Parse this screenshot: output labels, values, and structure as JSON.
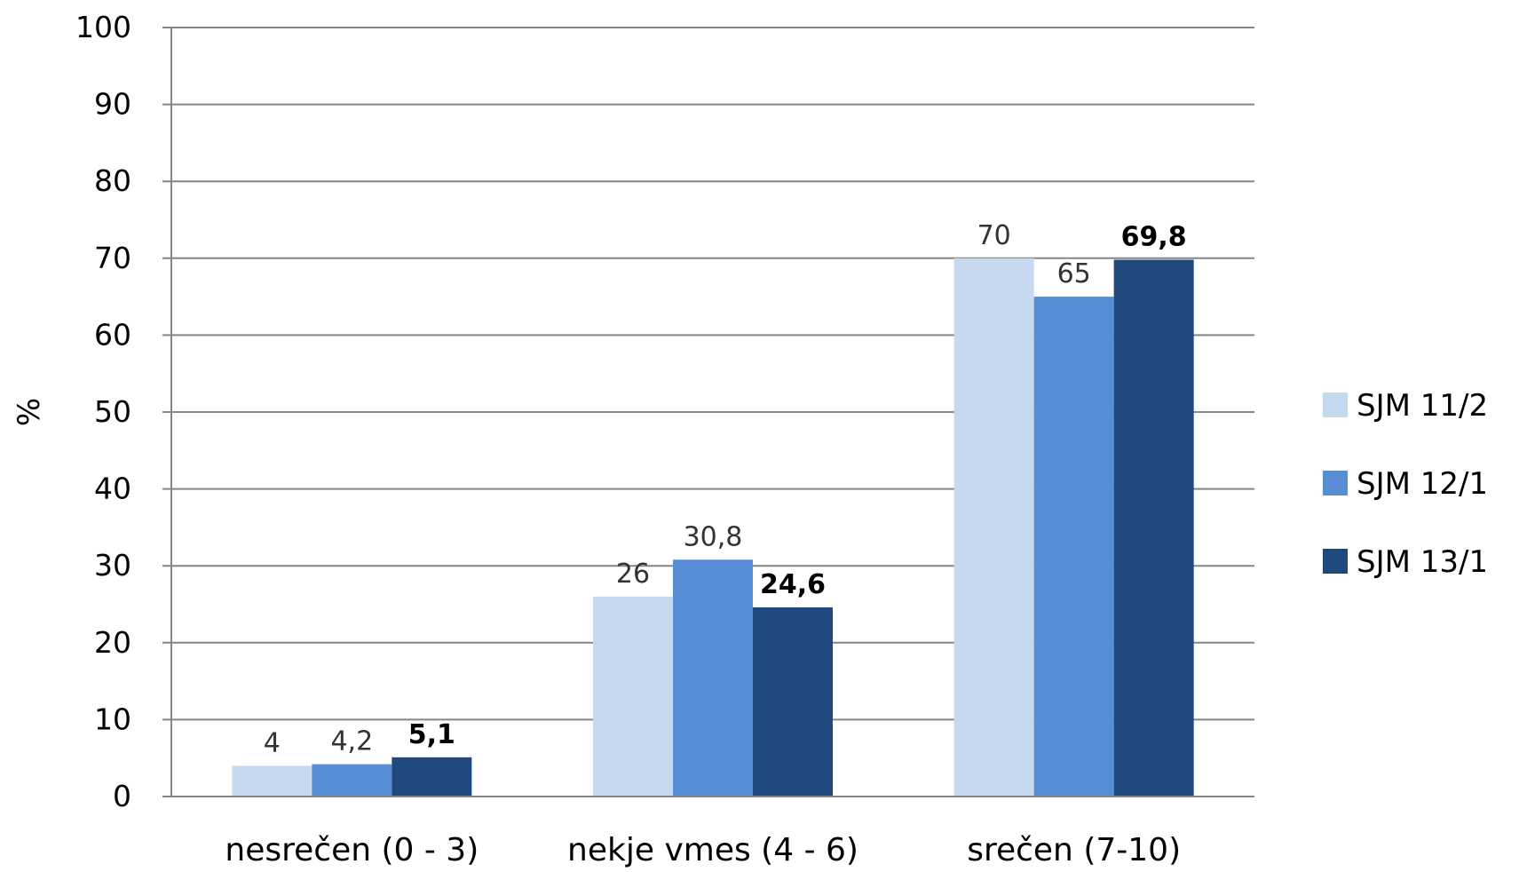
{
  "chart_data": {
    "type": "bar",
    "categories": [
      "nesrečen (0 - 3)",
      "nekje vmes (4 - 6)",
      "srečen (7-10)"
    ],
    "series": [
      {
        "name": "SJM 11/2",
        "color": "#c6d9f0",
        "values": [
          4,
          26,
          70
        ],
        "labels": [
          "4",
          "26",
          "70"
        ],
        "bold_labels": false
      },
      {
        "name": "SJM 12/1",
        "color": "#558ed5",
        "values": [
          4.2,
          30.8,
          65
        ],
        "labels": [
          "4,2",
          "30,8",
          "65"
        ],
        "bold_labels": false
      },
      {
        "name": "SJM 13/1",
        "color": "#1f497d",
        "values": [
          5.1,
          24.6,
          69.8
        ],
        "labels": [
          "5,1",
          "24,6",
          "69,8"
        ],
        "bold_labels": true
      }
    ],
    "ylabel": "%",
    "xlabel": "",
    "ylim": [
      0,
      100
    ],
    "yticks": [
      0,
      10,
      20,
      30,
      40,
      50,
      60,
      70,
      80,
      90,
      100
    ],
    "grid": true,
    "legend_position": "right"
  }
}
